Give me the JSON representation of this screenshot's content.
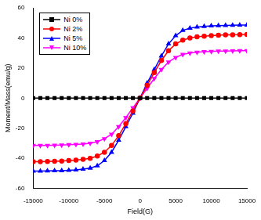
{
  "chart_data": {
    "type": "line",
    "x_label": "Field(G)",
    "y_label": "Moment/Mass(emu/g)",
    "x": [
      -15000,
      -14000,
      -13000,
      -12000,
      -11000,
      -10000,
      -9000,
      -8000,
      -7000,
      -6000,
      -5000,
      -4000,
      -3000,
      -2000,
      -1000,
      0,
      1000,
      2000,
      3000,
      4000,
      5000,
      6000,
      7000,
      8000,
      9000,
      10000,
      11000,
      12000,
      13000,
      14000,
      15000
    ],
    "series": [
      {
        "name": "Ni 0%",
        "color": "#000000",
        "marker": "square",
        "values": [
          0,
          0,
          0,
          0,
          0,
          0,
          0,
          0,
          0,
          0,
          0,
          0,
          0,
          0,
          0,
          0,
          0,
          0,
          0,
          0,
          0,
          0,
          0,
          0,
          0,
          0,
          0,
          0,
          0,
          0,
          0
        ]
      },
      {
        "name": "Ni 2%",
        "color": "#ff0000",
        "marker": "circle",
        "values": [
          -42.3,
          -42.2,
          -42.1,
          -42,
          -41.8,
          -41.5,
          -41.2,
          -40.7,
          -40,
          -38.5,
          -36,
          -31.5,
          -25,
          -17,
          -8.5,
          0,
          8.5,
          17,
          25,
          31.5,
          36,
          38.5,
          40,
          40.7,
          41.2,
          41.5,
          41.8,
          42,
          42.1,
          42.2,
          42.3
        ]
      },
      {
        "name": "Ni 5%",
        "color": "#0000ff",
        "marker": "triangle-up",
        "values": [
          -48.5,
          -48.5,
          -48.4,
          -48.3,
          -48.2,
          -48,
          -47.7,
          -47.2,
          -46.5,
          -45,
          -41.5,
          -36,
          -28,
          -19,
          -10,
          0,
          10,
          19,
          28,
          36,
          41.5,
          45,
          46.5,
          47.2,
          47.7,
          48,
          48.2,
          48.3,
          48.4,
          48.5,
          48.5
        ]
      },
      {
        "name": "Ni 10%",
        "color": "#ff00ff",
        "marker": "triangle-down",
        "values": [
          -31.5,
          -31.5,
          -31.4,
          -31.3,
          -31.2,
          -31,
          -30.8,
          -30.5,
          -30,
          -29,
          -27,
          -24,
          -19,
          -13,
          -6.5,
          0,
          6.5,
          13,
          19,
          24,
          27,
          29,
          30,
          30.5,
          30.8,
          31,
          31.2,
          31.3,
          31.4,
          31.5,
          31.5
        ]
      }
    ],
    "xlim": [
      -15000,
      15000
    ],
    "xticks": [
      -15000,
      -10000,
      -5000,
      0,
      5000,
      10000,
      15000
    ],
    "ylim": [
      -60,
      60
    ],
    "yticks": [
      -60,
      -40,
      -20,
      0,
      20,
      40,
      60
    ],
    "grid": false,
    "legend": "upper left"
  }
}
